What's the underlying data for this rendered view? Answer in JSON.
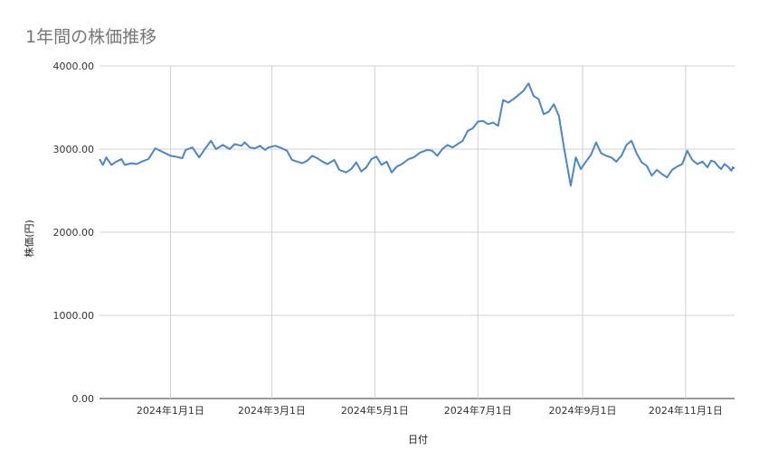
{
  "chart_data": {
    "type": "line",
    "title": "1年間の株価推移",
    "xlabel": "日付",
    "ylabel": "株価(円)",
    "ylim": [
      0,
      4000
    ],
    "yticks": [
      "0.00",
      "1000.00",
      "2000.00",
      "3000.00",
      "4000.00"
    ],
    "xlim": [
      "2023-11-20",
      "2024-11-30"
    ],
    "xticks": [
      {
        "date": "2024-01-01",
        "label": "2024年1月1日"
      },
      {
        "date": "2024-03-01",
        "label": "2024年3月1日"
      },
      {
        "date": "2024-05-01",
        "label": "2024年5月1日"
      },
      {
        "date": "2024-07-01",
        "label": "2024年7月1日"
      },
      {
        "date": "2024-09-01",
        "label": "2024年9月1日"
      },
      {
        "date": "2024-11-01",
        "label": "2024年11月1日"
      }
    ],
    "grid": true,
    "legend": "none",
    "series": [
      {
        "color": "#4a86c8",
        "points": [
          [
            "2023-11-20",
            2880
          ],
          [
            "2023-11-22",
            2810
          ],
          [
            "2023-11-24",
            2900
          ],
          [
            "2023-11-27",
            2810
          ],
          [
            "2023-11-30",
            2850
          ],
          [
            "2023-12-03",
            2880
          ],
          [
            "2023-12-05",
            2810
          ],
          [
            "2023-12-09",
            2830
          ],
          [
            "2023-12-12",
            2820
          ],
          [
            "2023-12-15",
            2850
          ],
          [
            "2023-12-19",
            2880
          ],
          [
            "2023-12-23",
            3010
          ],
          [
            "2023-12-28",
            2960
          ],
          [
            "2024-01-01",
            2920
          ],
          [
            "2024-01-04",
            2910
          ],
          [
            "2024-01-08",
            2890
          ],
          [
            "2024-01-10",
            2990
          ],
          [
            "2024-01-14",
            3020
          ],
          [
            "2024-01-18",
            2900
          ],
          [
            "2024-01-21",
            2990
          ],
          [
            "2024-01-25",
            3100
          ],
          [
            "2024-01-28",
            3000
          ],
          [
            "2024-02-01",
            3050
          ],
          [
            "2024-02-05",
            3000
          ],
          [
            "2024-02-08",
            3060
          ],
          [
            "2024-02-12",
            3040
          ],
          [
            "2024-02-14",
            3080
          ],
          [
            "2024-02-17",
            3020
          ],
          [
            "2024-02-20",
            3010
          ],
          [
            "2024-02-23",
            3040
          ],
          [
            "2024-02-26",
            2990
          ],
          [
            "2024-02-28",
            3020
          ],
          [
            "2024-03-03",
            3040
          ],
          [
            "2024-03-07",
            3010
          ],
          [
            "2024-03-10",
            2980
          ],
          [
            "2024-03-13",
            2870
          ],
          [
            "2024-03-16",
            2850
          ],
          [
            "2024-03-19",
            2830
          ],
          [
            "2024-03-22",
            2860
          ],
          [
            "2024-03-25",
            2920
          ],
          [
            "2024-03-28",
            2890
          ],
          [
            "2024-03-31",
            2850
          ],
          [
            "2024-04-03",
            2820
          ],
          [
            "2024-04-07",
            2870
          ],
          [
            "2024-04-10",
            2750
          ],
          [
            "2024-04-14",
            2720
          ],
          [
            "2024-04-17",
            2760
          ],
          [
            "2024-04-20",
            2840
          ],
          [
            "2024-04-23",
            2730
          ],
          [
            "2024-04-26",
            2780
          ],
          [
            "2024-04-29",
            2880
          ],
          [
            "2024-05-02",
            2910
          ],
          [
            "2024-05-05",
            2810
          ],
          [
            "2024-05-08",
            2850
          ],
          [
            "2024-05-11",
            2720
          ],
          [
            "2024-05-14",
            2790
          ],
          [
            "2024-05-17",
            2820
          ],
          [
            "2024-05-21",
            2880
          ],
          [
            "2024-05-24",
            2900
          ],
          [
            "2024-05-28",
            2960
          ],
          [
            "2024-06-01",
            2990
          ],
          [
            "2024-06-04",
            2980
          ],
          [
            "2024-06-07",
            2920
          ],
          [
            "2024-06-10",
            3000
          ],
          [
            "2024-06-13",
            3050
          ],
          [
            "2024-06-16",
            3020
          ],
          [
            "2024-06-19",
            3060
          ],
          [
            "2024-06-22",
            3100
          ],
          [
            "2024-06-25",
            3220
          ],
          [
            "2024-06-28",
            3250
          ],
          [
            "2024-07-01",
            3330
          ],
          [
            "2024-07-04",
            3340
          ],
          [
            "2024-07-07",
            3300
          ],
          [
            "2024-07-10",
            3320
          ],
          [
            "2024-07-13",
            3280
          ],
          [
            "2024-07-16",
            3590
          ],
          [
            "2024-07-19",
            3560
          ],
          [
            "2024-07-22",
            3600
          ],
          [
            "2024-07-25",
            3650
          ],
          [
            "2024-07-28",
            3700
          ],
          [
            "2024-07-31",
            3790
          ],
          [
            "2024-08-03",
            3640
          ],
          [
            "2024-08-06",
            3600
          ],
          [
            "2024-08-09",
            3420
          ],
          [
            "2024-08-12",
            3450
          ],
          [
            "2024-08-15",
            3540
          ],
          [
            "2024-08-18",
            3400
          ],
          [
            "2024-08-21",
            3020
          ],
          [
            "2024-08-25",
            2560
          ],
          [
            "2024-08-28",
            2900
          ],
          [
            "2024-08-31",
            2760
          ],
          [
            "2024-09-03",
            2850
          ],
          [
            "2024-09-06",
            2930
          ],
          [
            "2024-09-09",
            3080
          ],
          [
            "2024-09-12",
            2950
          ],
          [
            "2024-09-15",
            2920
          ],
          [
            "2024-09-18",
            2900
          ],
          [
            "2024-09-21",
            2850
          ],
          [
            "2024-09-24",
            2920
          ],
          [
            "2024-09-27",
            3050
          ],
          [
            "2024-09-30",
            3100
          ],
          [
            "2024-10-03",
            2950
          ],
          [
            "2024-10-06",
            2840
          ],
          [
            "2024-10-09",
            2800
          ],
          [
            "2024-10-12",
            2680
          ],
          [
            "2024-10-15",
            2750
          ],
          [
            "2024-10-18",
            2700
          ],
          [
            "2024-10-21",
            2660
          ],
          [
            "2024-10-24",
            2750
          ],
          [
            "2024-10-27",
            2790
          ],
          [
            "2024-10-30",
            2820
          ],
          [
            "2024-11-02",
            2980
          ],
          [
            "2024-11-05",
            2870
          ],
          [
            "2024-11-08",
            2820
          ],
          [
            "2024-11-11",
            2850
          ],
          [
            "2024-11-14",
            2780
          ],
          [
            "2024-11-16",
            2860
          ],
          [
            "2024-11-18",
            2850
          ],
          [
            "2024-11-20",
            2800
          ],
          [
            "2024-11-22",
            2760
          ],
          [
            "2024-11-24",
            2820
          ],
          [
            "2024-11-26",
            2790
          ],
          [
            "2024-11-28",
            2740
          ],
          [
            "2024-11-29",
            2780
          ],
          [
            "2024-11-30",
            2770
          ]
        ]
      }
    ]
  }
}
